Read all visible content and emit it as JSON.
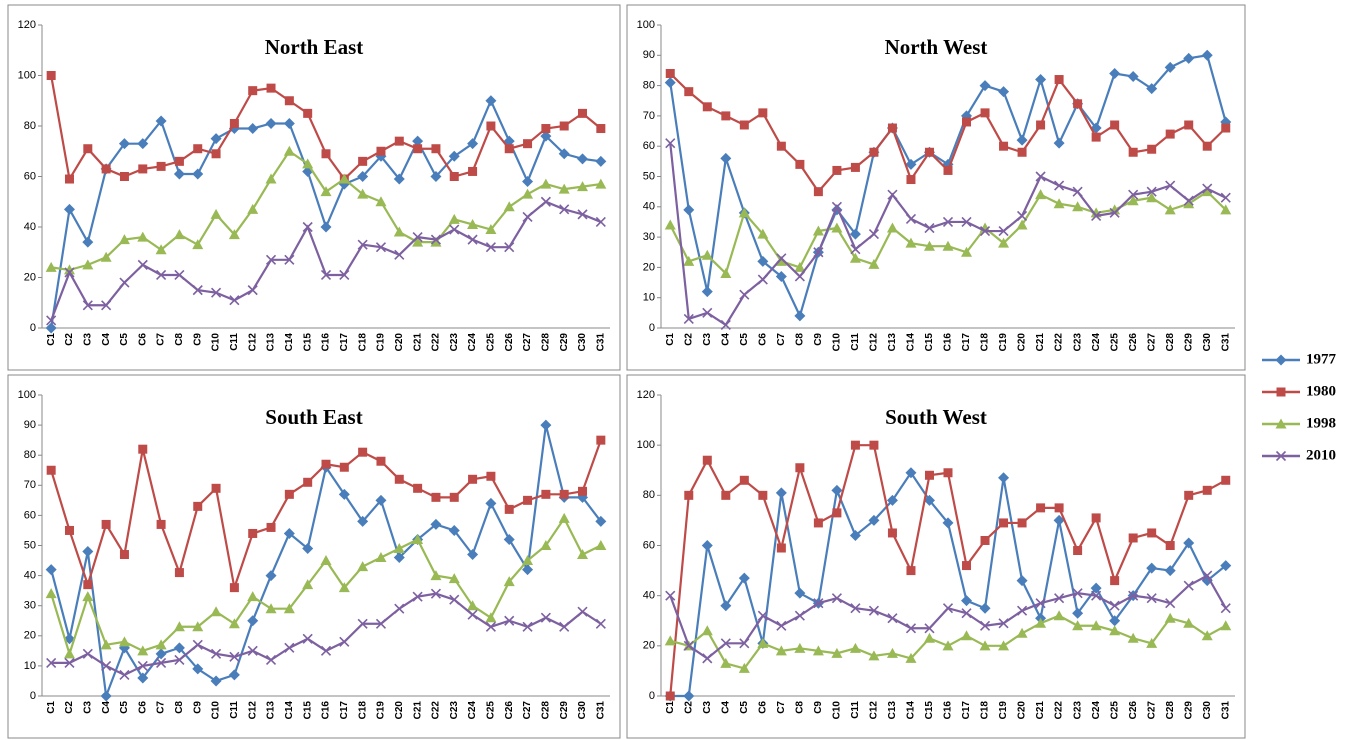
{
  "legend": {
    "position": "right",
    "series": [
      {
        "name": "1977",
        "color": "#4a7ebb",
        "marker": "diamond"
      },
      {
        "name": "1980",
        "color": "#be4b48",
        "marker": "square"
      },
      {
        "name": "1998",
        "color": "#98b954",
        "marker": "triangle"
      },
      {
        "name": "2010",
        "color": "#7d60a0",
        "marker": "x"
      }
    ]
  },
  "chart_data": [
    {
      "type": "line",
      "title": "North East",
      "grid": false,
      "categories": [
        "C1",
        "C2",
        "C3",
        "C4",
        "C5",
        "C6",
        "C7",
        "C8",
        "C9",
        "C10",
        "C11",
        "C12",
        "C13",
        "C14",
        "C15",
        "C16",
        "C17",
        "C18",
        "C19",
        "C20",
        "C21",
        "C22",
        "C23",
        "C24",
        "C25",
        "C26",
        "C27",
        "C28",
        "C29",
        "C30",
        "C31"
      ],
      "ylim": [
        0,
        120
      ],
      "yticks": [
        0,
        20,
        40,
        60,
        80,
        100,
        120
      ],
      "series": [
        {
          "values": [
            0,
            47,
            34,
            63,
            73,
            73,
            82,
            61,
            61,
            75,
            79,
            79,
            81,
            81,
            62,
            40,
            57,
            60,
            68,
            59,
            74,
            60,
            68,
            73,
            90,
            74,
            58,
            76,
            69,
            67,
            66
          ]
        },
        {
          "values": [
            100,
            59,
            71,
            63,
            60,
            63,
            64,
            66,
            71,
            69,
            81,
            94,
            95,
            90,
            85,
            69,
            59,
            66,
            70,
            74,
            71,
            71,
            60,
            62,
            80,
            71,
            73,
            79,
            80,
            85,
            79
          ]
        },
        {
          "values": [
            24,
            23,
            25,
            28,
            35,
            36,
            31,
            37,
            33,
            45,
            37,
            47,
            59,
            70,
            65,
            54,
            59,
            53,
            50,
            38,
            34,
            34,
            43,
            41,
            39,
            48,
            53,
            57,
            55,
            56,
            57
          ]
        },
        {
          "values": [
            3,
            22,
            9,
            9,
            18,
            25,
            21,
            21,
            15,
            14,
            11,
            15,
            27,
            27,
            40,
            21,
            21,
            33,
            32,
            29,
            36,
            35,
            39,
            35,
            32,
            32,
            44,
            50,
            47,
            45,
            42
          ]
        }
      ]
    },
    {
      "type": "line",
      "title": "North West",
      "grid": false,
      "categories": [
        "C1",
        "C2",
        "C3",
        "C4",
        "C5",
        "C6",
        "C7",
        "C8",
        "C9",
        "C10",
        "C11",
        "C12",
        "C13",
        "C14",
        "C15",
        "C16",
        "C17",
        "C18",
        "C19",
        "C20",
        "C21",
        "C22",
        "C23",
        "C24",
        "C25",
        "C26",
        "C27",
        "C28",
        "C29",
        "C30",
        "C31"
      ],
      "ylim": [
        0,
        100
      ],
      "yticks": [
        0,
        10,
        20,
        30,
        40,
        50,
        60,
        70,
        80,
        90,
        100
      ],
      "series": [
        {
          "values": [
            81,
            39,
            12,
            56,
            38,
            22,
            17,
            4,
            25,
            39,
            31,
            58,
            66,
            54,
            58,
            54,
            70,
            80,
            78,
            62,
            82,
            61,
            74,
            66,
            84,
            83,
            79,
            86,
            89,
            90,
            68
          ]
        },
        {
          "values": [
            84,
            78,
            73,
            70,
            67,
            71,
            60,
            54,
            45,
            52,
            53,
            58,
            66,
            49,
            58,
            52,
            68,
            71,
            60,
            58,
            67,
            82,
            74,
            63,
            67,
            58,
            59,
            64,
            67,
            60,
            66
          ]
        },
        {
          "values": [
            34,
            22,
            24,
            18,
            38,
            31,
            22,
            20,
            32,
            33,
            23,
            21,
            33,
            28,
            27,
            27,
            25,
            33,
            28,
            34,
            44,
            41,
            40,
            38,
            39,
            42,
            43,
            39,
            41,
            45,
            39
          ]
        },
        {
          "values": [
            61,
            3,
            5,
            1,
            11,
            16,
            23,
            17,
            25,
            40,
            26,
            31,
            44,
            36,
            33,
            35,
            35,
            32,
            32,
            37,
            50,
            47,
            45,
            37,
            38,
            44,
            45,
            47,
            42,
            46,
            43
          ]
        }
      ]
    },
    {
      "type": "line",
      "title": "South East",
      "grid": false,
      "categories": [
        "C1",
        "C2",
        "C3",
        "C4",
        "C5",
        "C6",
        "C7",
        "C8",
        "C9",
        "C10",
        "C11",
        "C12",
        "C13",
        "C14",
        "C15",
        "C16",
        "C17",
        "C18",
        "C19",
        "C20",
        "C21",
        "C22",
        "C23",
        "C24",
        "C25",
        "C26",
        "C27",
        "C28",
        "C29",
        "C30",
        "C31"
      ],
      "ylim": [
        0,
        100
      ],
      "yticks": [
        0,
        10,
        20,
        30,
        40,
        50,
        60,
        70,
        80,
        90,
        100
      ],
      "series": [
        {
          "values": [
            42,
            19,
            48,
            0,
            16,
            6,
            14,
            16,
            9,
            5,
            7,
            25,
            40,
            54,
            49,
            76,
            67,
            58,
            65,
            46,
            52,
            57,
            55,
            47,
            64,
            52,
            42,
            90,
            66,
            66,
            58
          ]
        },
        {
          "values": [
            75,
            55,
            37,
            57,
            47,
            82,
            57,
            41,
            63,
            69,
            36,
            54,
            56,
            67,
            71,
            77,
            76,
            81,
            78,
            72,
            69,
            66,
            66,
            72,
            73,
            62,
            65,
            67,
            67,
            68,
            85
          ]
        },
        {
          "values": [
            34,
            14,
            33,
            17,
            18,
            15,
            17,
            23,
            23,
            28,
            24,
            33,
            29,
            29,
            37,
            45,
            36,
            43,
            46,
            49,
            52,
            40,
            39,
            30,
            26,
            38,
            45,
            50,
            59,
            47,
            50
          ]
        },
        {
          "values": [
            11,
            11,
            14,
            10,
            7,
            10,
            11,
            12,
            17,
            14,
            13,
            15,
            12,
            16,
            19,
            15,
            18,
            24,
            24,
            29,
            33,
            34,
            32,
            27,
            23,
            25,
            23,
            26,
            23,
            28,
            24
          ]
        }
      ]
    },
    {
      "type": "line",
      "title": "South West",
      "grid": false,
      "categories": [
        "C1",
        "C2",
        "C3",
        "C4",
        "C5",
        "C6",
        "C7",
        "C8",
        "C9",
        "C10",
        "C11",
        "C12",
        "C13",
        "C14",
        "C15",
        "C16",
        "C17",
        "C18",
        "C19",
        "C20",
        "C21",
        "C22",
        "C23",
        "C24",
        "C25",
        "C26",
        "C27",
        "C28",
        "C29",
        "C30",
        "C31"
      ],
      "ylim": [
        0,
        120
      ],
      "yticks": [
        0,
        20,
        40,
        60,
        80,
        100,
        120
      ],
      "series": [
        {
          "values": [
            0,
            0,
            60,
            36,
            47,
            21,
            81,
            41,
            37,
            82,
            64,
            70,
            78,
            89,
            78,
            69,
            38,
            35,
            87,
            46,
            31,
            70,
            33,
            43,
            30,
            40,
            51,
            50,
            61,
            46,
            52
          ]
        },
        {
          "values": [
            0,
            80,
            94,
            80,
            86,
            80,
            59,
            91,
            69,
            73,
            100,
            100,
            65,
            50,
            88,
            89,
            52,
            62,
            69,
            69,
            75,
            75,
            58,
            71,
            46,
            63,
            65,
            60,
            80,
            82,
            86
          ]
        },
        {
          "values": [
            22,
            20,
            26,
            13,
            11,
            21,
            18,
            19,
            18,
            17,
            19,
            16,
            17,
            15,
            23,
            20,
            24,
            20,
            20,
            25,
            29,
            32,
            28,
            28,
            26,
            23,
            21,
            31,
            29,
            24,
            28
          ]
        },
        {
          "values": [
            40,
            20,
            15,
            21,
            21,
            32,
            28,
            32,
            37,
            39,
            35,
            34,
            31,
            27,
            27,
            35,
            33,
            28,
            29,
            34,
            37,
            39,
            41,
            40,
            36,
            40,
            39,
            37,
            44,
            48,
            35
          ]
        }
      ]
    }
  ]
}
